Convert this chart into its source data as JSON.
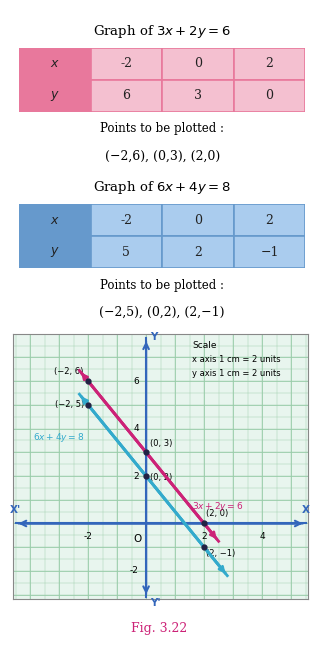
{
  "title1": "Graph of $3x + 2y = 6$",
  "table1_x": [
    "-2",
    "0",
    "2"
  ],
  "table1_y": [
    "6",
    "3",
    "0"
  ],
  "points1_label": "Points to be plotted :",
  "points1_text": "(−2,6), (0,3), (2,0)",
  "title2": "Graph of $6x + 4y = 8$",
  "table2_x": [
    "-2",
    "0",
    "2"
  ],
  "table2_y": [
    "5",
    "2",
    "−1"
  ],
  "points2_label": "Points to be plotted :",
  "points2_text": "(−2,5), (0,2), (2,−1)",
  "fig_caption": "Fig. 3.22",
  "line1_color": "#cc2277",
  "line2_color": "#33aacc",
  "table1_header_color": "#e8789c",
  "table1_cell_color": "#f4c0d0",
  "table2_header_color": "#6699cc",
  "table2_cell_color": "#aaccee",
  "grid_bg": "#e8f5ee",
  "grid_line_color": "#99ccaa",
  "axis_color": "#3366bb",
  "scale_text": "Scale\nx axis 1 cm = 2 units\ny axis 1 cm = 2 units"
}
